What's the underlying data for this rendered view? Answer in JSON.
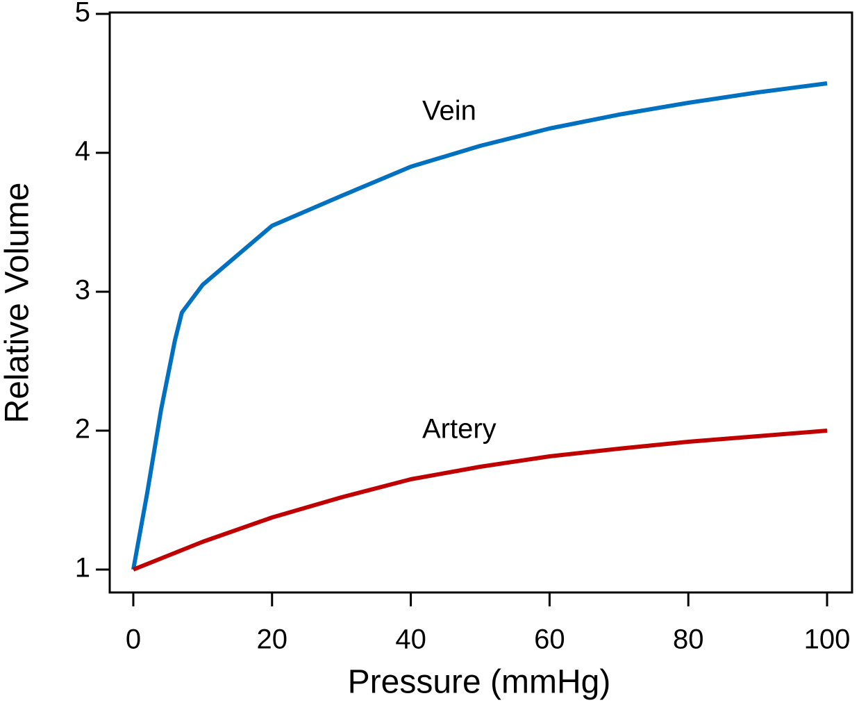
{
  "chart_data": {
    "type": "line",
    "xlabel": "Pressure (mmHg)",
    "ylabel": "Relative Volume",
    "x": [
      0,
      2,
      4,
      6,
      7,
      10,
      20,
      30,
      40,
      50,
      60,
      70,
      80,
      90,
      100
    ],
    "series": [
      {
        "name": "Vein",
        "color": "#0070c0",
        "values": [
          1,
          1.55,
          2.15,
          2.65,
          2.85,
          3.05,
          3.475,
          3.69,
          3.9,
          4.05,
          4.175,
          4.275,
          4.36,
          4.435,
          4.5
        ]
      },
      {
        "name": "Artery",
        "color": "#c00000",
        "values": [
          1,
          1.04,
          1.08,
          1.12,
          1.14,
          1.2,
          1.375,
          1.52,
          1.65,
          1.74,
          1.815,
          1.87,
          1.92,
          1.96,
          2.0
        ]
      }
    ],
    "xlim": [
      -3.4,
      103.6
    ],
    "ylim": [
      0.835,
      5.01
    ],
    "xticks": [
      0,
      20,
      40,
      60,
      80,
      100
    ],
    "yticks": [
      1,
      2,
      3,
      4,
      5
    ],
    "grid": false
  }
}
